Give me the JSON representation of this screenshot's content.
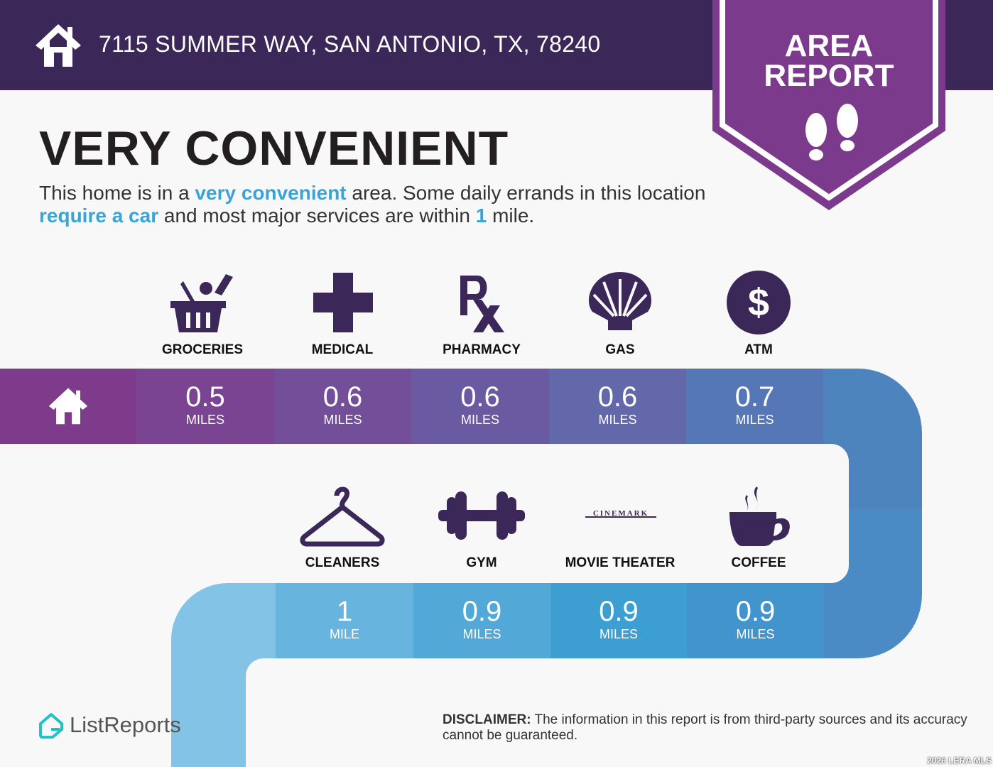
{
  "header": {
    "address": "7115 SUMMER WAY, SAN ANTONIO, TX, 78240"
  },
  "badge": {
    "line1": "AREA",
    "line2": "REPORT",
    "icon": "footprints-icon"
  },
  "title": "VERY CONVENIENT",
  "description": {
    "p1": "This home is in a ",
    "h1": "very convenient",
    "p2": " area. Some daily errands in this location ",
    "h2": "require a car",
    "p3": " and most major services are within ",
    "h3": "1",
    "p4": " mile."
  },
  "row1": [
    {
      "label": "GROCERIES",
      "value": "0.5",
      "unit": "MILES",
      "icon": "grocery-basket-icon"
    },
    {
      "label": "MEDICAL",
      "value": "0.6",
      "unit": "MILES",
      "icon": "medical-cross-icon"
    },
    {
      "label": "PHARMACY",
      "value": "0.6",
      "unit": "MILES",
      "icon": "rx-icon"
    },
    {
      "label": "GAS",
      "value": "0.6",
      "unit": "MILES",
      "icon": "shell-icon"
    },
    {
      "label": "ATM",
      "value": "0.7",
      "unit": "MILES",
      "icon": "dollar-icon"
    }
  ],
  "row2": [
    {
      "label": "CLEANERS",
      "value": "1",
      "unit": "MILE",
      "icon": "hanger-icon"
    },
    {
      "label": "GYM",
      "value": "0.9",
      "unit": "MILES",
      "icon": "dumbbell-icon"
    },
    {
      "label": "MOVIE THEATER",
      "value": "0.9",
      "unit": "MILES",
      "icon": "cinemark-logo",
      "logo_text": "CINEMARK"
    },
    {
      "label": "COFFEE",
      "value": "0.9",
      "unit": "MILES",
      "icon": "coffee-cup-icon"
    }
  ],
  "footer": {
    "logo": "ListReports",
    "disclaimer_label": "DISCLAIMER:",
    "disclaimer": " The information in this report is from third-party sources and its accuracy cannot be guaranteed.",
    "copyright": "2026 LERA MLS"
  },
  "colors": {
    "header": "#3b2858",
    "badge": "#7b3a8c",
    "accent": "#3ba3d6",
    "icon": "#3b2858"
  }
}
